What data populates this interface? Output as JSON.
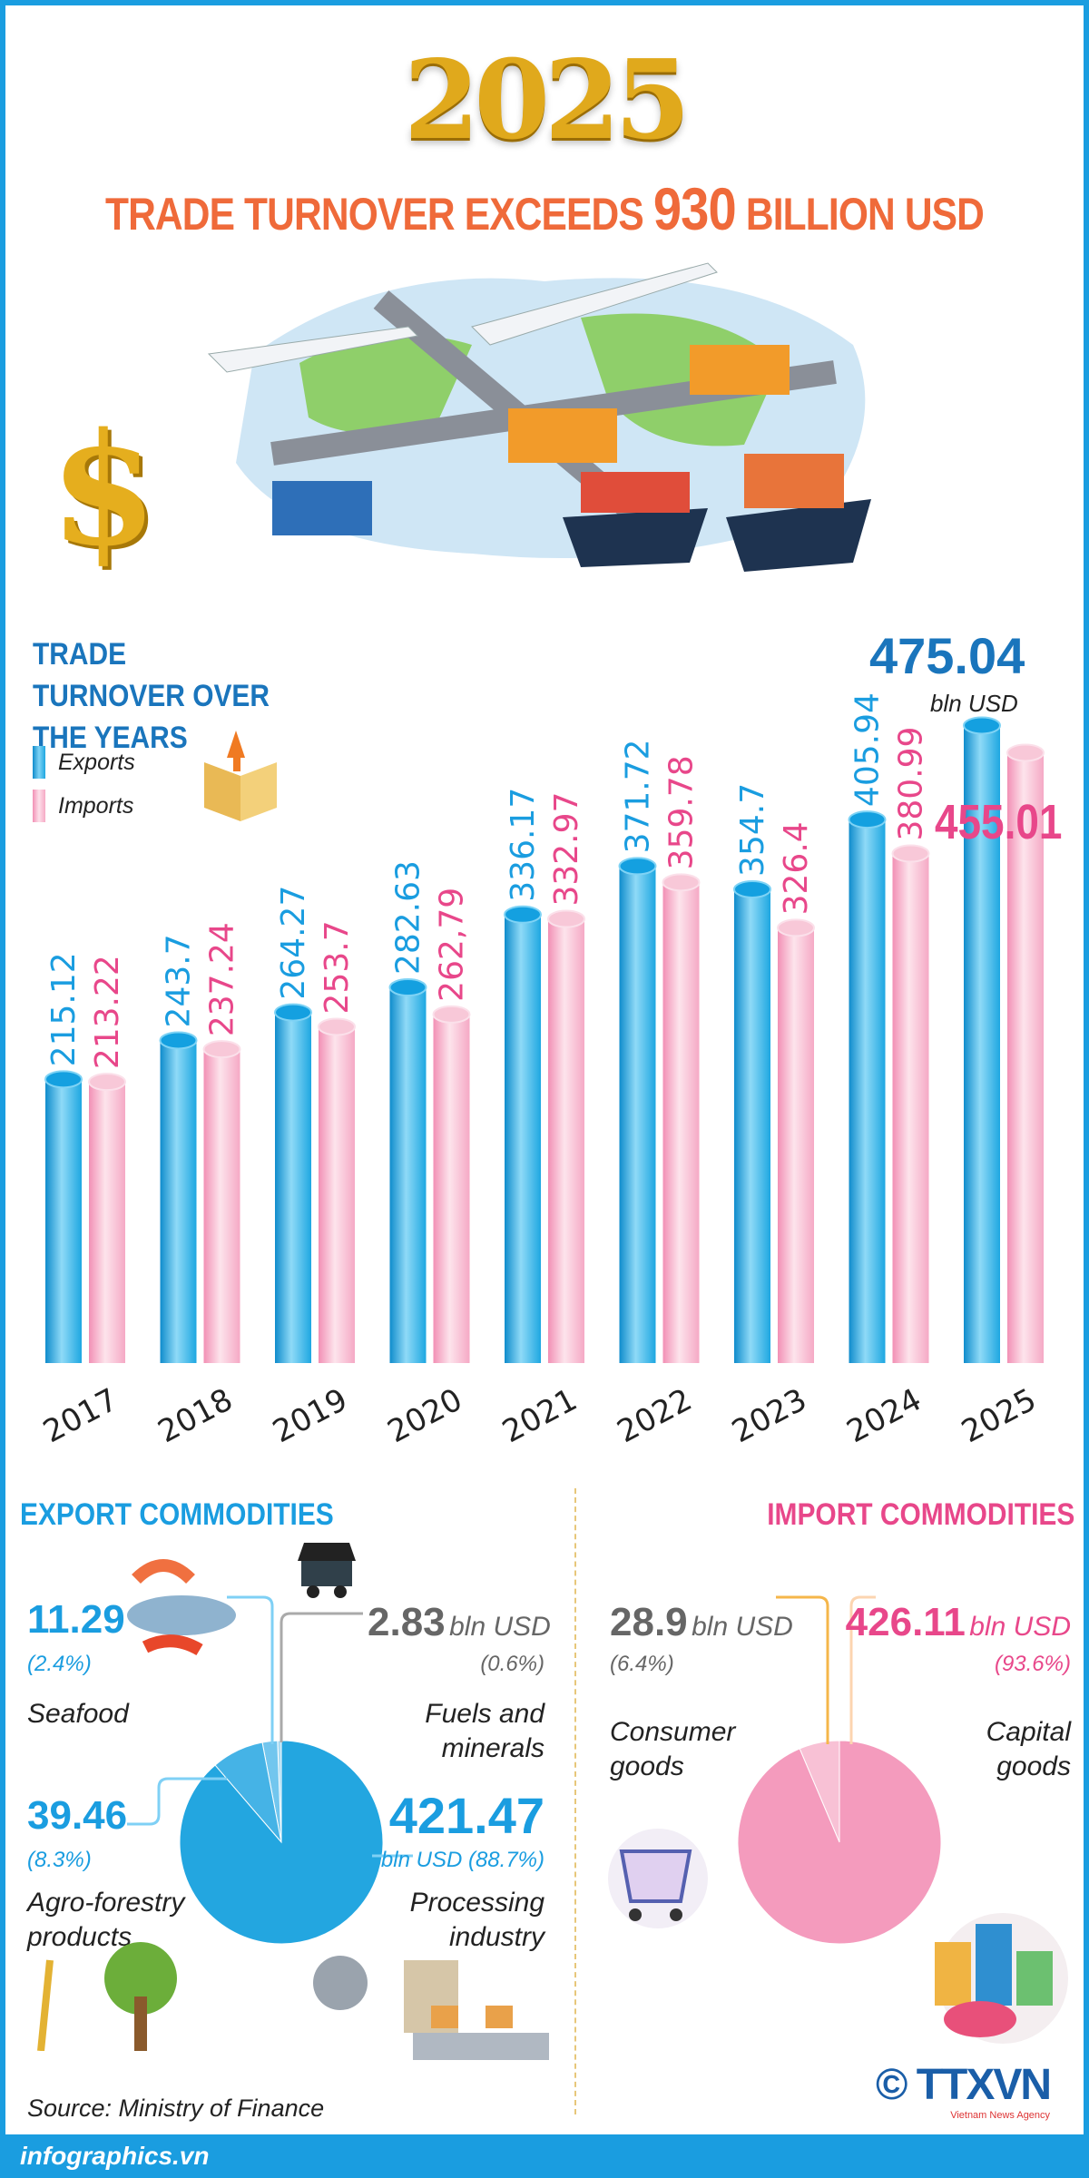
{
  "header": {
    "year": "2025",
    "title_pre": "TRADE TURNOVER EXCEEDS ",
    "title_num": "930",
    "title_post": " BILLION USD"
  },
  "chart_data": {
    "type": "bar",
    "title": "TRADE TURNOVER OVER THE YEARS",
    "categories": [
      "2017",
      "2018",
      "2019",
      "2020",
      "2021",
      "2022",
      "2023",
      "2024",
      "2025"
    ],
    "series": [
      {
        "name": "Exports",
        "color": "#1ea7e1",
        "values": [
          215.12,
          243.7,
          264.27,
          282.63,
          336.17,
          371.72,
          354.7,
          405.94,
          475.04
        ],
        "labels": [
          "215.12",
          "243.7",
          "264.27",
          "282.63",
          "336.17",
          "371.72",
          "354.7",
          "405.94",
          "475.04"
        ]
      },
      {
        "name": "Imports",
        "color": "#f5a9c5",
        "values": [
          213.22,
          237.24,
          253.7,
          262.79,
          332.97,
          359.78,
          326.4,
          380.99,
          455.01
        ],
        "labels": [
          "213.22",
          "237.24",
          "253.7",
          "262,79",
          "332.97",
          "359.78",
          "326.4",
          "380.99",
          "455.01"
        ]
      }
    ],
    "unit": "bln USD",
    "highlight": {
      "export": "475.04",
      "import": "455.01",
      "unit": "bln USD"
    },
    "label_color_export": "#1a9de0",
    "label_color_import": "#e8478a"
  },
  "exports": {
    "title": "EXPORT COMMODITIES",
    "slices": [
      {
        "name": "Fuels and minerals",
        "value": "2.83",
        "unit": "bln USD",
        "pct": "(0.6%)",
        "share": 0.6,
        "color": "#a8dbf3"
      },
      {
        "name": "Seafood",
        "value": "11.29",
        "pct": "(2.4%)",
        "share": 2.4,
        "color": "#72c6ee"
      },
      {
        "name": "Agro-forestry products",
        "value": "39.46",
        "pct": "(8.3%)",
        "share": 8.3,
        "color": "#45b3e6"
      },
      {
        "name": "Processing industry",
        "value": "421.47",
        "unit_pct": "bln USD (88.7%)",
        "share": 88.7,
        "color": "#23a6e0"
      }
    ]
  },
  "imports": {
    "title": "IMPORT COMMODITIES",
    "slices": [
      {
        "name": "Consumer goods",
        "value": "28.9",
        "unit": "bln USD",
        "pct": "(6.4%)",
        "share": 6.4,
        "color": "#f8c1d5"
      },
      {
        "name": "Capital goods",
        "value": "426.11",
        "unit": "bln USD",
        "pct": "(93.6%)",
        "share": 93.6,
        "color": "#f49bbd"
      }
    ]
  },
  "source": "Source: Ministry of Finance",
  "footer": "infographics.vn",
  "logo": {
    "text": "© TTXVN",
    "sub": "Vietnam News Agency"
  }
}
